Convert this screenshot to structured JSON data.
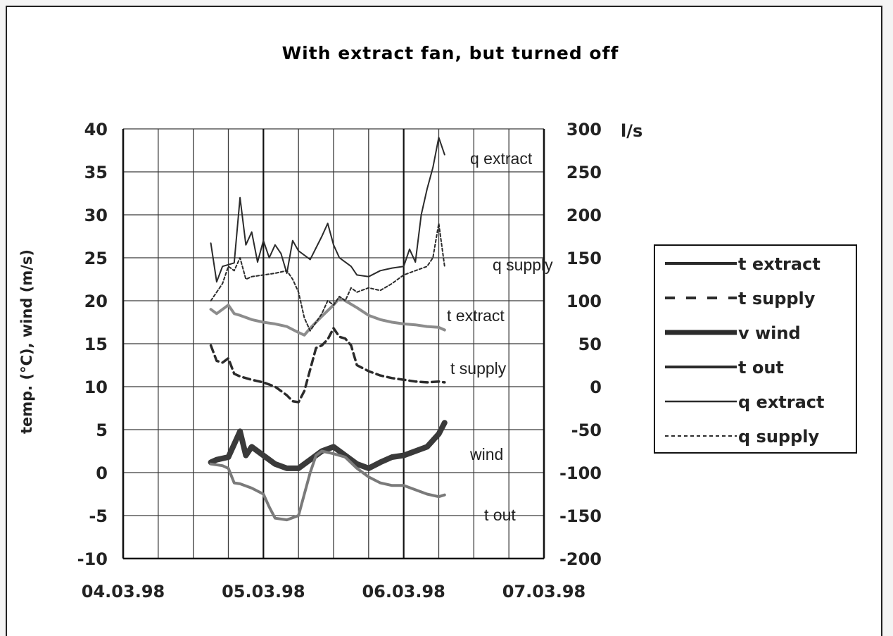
{
  "chart_data": {
    "type": "line",
    "title": "With extract fan, but  turned off",
    "ylabel": "temp. (°C),  wind (m/s)",
    "y2label": "l/s",
    "xlabel": "",
    "x_ticks": [
      "04.03.98",
      "05.03.98",
      "06.03.98",
      "07.03.98"
    ],
    "xlim": [
      "04.03.98 00:00",
      "07.03.98 00:00"
    ],
    "ylim": [
      -10,
      40
    ],
    "y2lim": [
      -200,
      300
    ],
    "y_ticks": [
      "40",
      "35",
      "30",
      "25",
      "20",
      "15",
      "10",
      "5",
      "0",
      "-5",
      "-10"
    ],
    "y2_ticks": [
      "300",
      "250",
      "200",
      "150",
      "100",
      "50",
      "0",
      "-50",
      "-100",
      "-150",
      "-200"
    ],
    "grid": true,
    "legend_position": "right",
    "colors": {
      "dark": "#2b2b2b",
      "gray": "#8c8c8c",
      "medium": "#4a4a4a"
    },
    "legend": [
      "t extract",
      "t supply",
      "v wind",
      "t out",
      "q extract",
      "q supply"
    ],
    "annotations": [
      "q extract",
      "q supply",
      "t extract",
      "t supply",
      "wind",
      "t out"
    ],
    "series": [
      {
        "name": "t extract",
        "axis": "left",
        "color": "#8c8c8c",
        "style": "solid-gray",
        "points": [
          [
            "04.03.98 15:00",
            19.0
          ],
          [
            "04.03.98 16:00",
            18.5
          ],
          [
            "04.03.98 17:00",
            19.0
          ],
          [
            "04.03.98 18:00",
            19.5
          ],
          [
            "04.03.98 19:00",
            18.5
          ],
          [
            "04.03.98 20:00",
            18.3
          ],
          [
            "04.03.98 22:00",
            17.8
          ],
          [
            "05.03.98 00:00",
            17.5
          ],
          [
            "05.03.98 02:00",
            17.3
          ],
          [
            "05.03.98 04:00",
            17.0
          ],
          [
            "05.03.98 06:00",
            16.3
          ],
          [
            "05.03.98 07:00",
            16.0
          ],
          [
            "05.03.98 08:00",
            16.8
          ],
          [
            "05.03.98 10:00",
            18.2
          ],
          [
            "05.03.98 12:00",
            19.5
          ],
          [
            "05.03.98 13:00",
            20.3
          ],
          [
            "05.03.98 14:00",
            20.0
          ],
          [
            "05.03.98 16:00",
            19.2
          ],
          [
            "05.03.98 18:00",
            18.3
          ],
          [
            "05.03.98 20:00",
            17.8
          ],
          [
            "05.03.98 22:00",
            17.5
          ],
          [
            "06.03.98 00:00",
            17.3
          ],
          [
            "06.03.98 02:00",
            17.2
          ],
          [
            "06.03.98 04:00",
            17.0
          ],
          [
            "06.03.98 06:00",
            16.9
          ],
          [
            "06.03.98 07:00",
            16.6
          ]
        ]
      },
      {
        "name": "t supply",
        "axis": "left",
        "color": "#2b2b2b",
        "style": "dashed",
        "points": [
          [
            "04.03.98 15:00",
            14.8
          ],
          [
            "04.03.98 16:00",
            13.0
          ],
          [
            "04.03.98 17:00",
            12.8
          ],
          [
            "04.03.98 18:00",
            13.3
          ],
          [
            "04.03.98 19:00",
            11.5
          ],
          [
            "04.03.98 20:00",
            11.2
          ],
          [
            "04.03.98 22:00",
            10.8
          ],
          [
            "05.03.98 00:00",
            10.5
          ],
          [
            "05.03.98 02:00",
            10.0
          ],
          [
            "05.03.98 04:00",
            9.0
          ],
          [
            "05.03.98 05:00",
            8.3
          ],
          [
            "05.03.98 06:00",
            8.2
          ],
          [
            "05.03.98 07:00",
            9.5
          ],
          [
            "05.03.98 08:00",
            12.0
          ],
          [
            "05.03.98 09:00",
            14.5
          ],
          [
            "05.03.98 10:00",
            14.8
          ],
          [
            "05.03.98 11:00",
            15.5
          ],
          [
            "05.03.98 12:00",
            16.8
          ],
          [
            "05.03.98 13:00",
            15.8
          ],
          [
            "05.03.98 14:00",
            15.6
          ],
          [
            "05.03.98 15:00",
            14.8
          ],
          [
            "05.03.98 16:00",
            12.5
          ],
          [
            "05.03.98 18:00",
            11.8
          ],
          [
            "05.03.98 20:00",
            11.3
          ],
          [
            "05.03.98 22:00",
            11.0
          ],
          [
            "06.03.98 00:00",
            10.8
          ],
          [
            "06.03.98 02:00",
            10.6
          ],
          [
            "06.03.98 04:00",
            10.5
          ],
          [
            "06.03.98 06:00",
            10.6
          ],
          [
            "06.03.98 07:00",
            10.5
          ]
        ]
      },
      {
        "name": "v wind",
        "axis": "left",
        "color": "#3a3a3a",
        "style": "thick",
        "points": [
          [
            "04.03.98 15:00",
            1.2
          ],
          [
            "04.03.98 16:00",
            1.5
          ],
          [
            "04.03.98 18:00",
            1.8
          ],
          [
            "04.03.98 20:00",
            4.8
          ],
          [
            "04.03.98 21:00",
            2.0
          ],
          [
            "04.03.98 22:00",
            3.0
          ],
          [
            "05.03.98 00:00",
            2.0
          ],
          [
            "05.03.98 02:00",
            1.0
          ],
          [
            "05.03.98 04:00",
            0.5
          ],
          [
            "05.03.98 06:00",
            0.5
          ],
          [
            "05.03.98 08:00",
            1.5
          ],
          [
            "05.03.98 10:00",
            2.5
          ],
          [
            "05.03.98 12:00",
            3.0
          ],
          [
            "05.03.98 14:00",
            2.0
          ],
          [
            "05.03.98 16:00",
            1.0
          ],
          [
            "05.03.98 18:00",
            0.5
          ],
          [
            "05.03.98 20:00",
            1.2
          ],
          [
            "05.03.98 22:00",
            1.8
          ],
          [
            "06.03.98 00:00",
            2.0
          ],
          [
            "06.03.98 02:00",
            2.5
          ],
          [
            "06.03.98 04:00",
            3.0
          ],
          [
            "06.03.98 06:00",
            4.5
          ],
          [
            "06.03.98 07:00",
            5.8
          ]
        ]
      },
      {
        "name": "t out",
        "axis": "left",
        "color": "#7a7a7a",
        "style": "solid-medium",
        "points": [
          [
            "04.03.98 15:00",
            1.0
          ],
          [
            "04.03.98 17:00",
            0.8
          ],
          [
            "04.03.98 18:00",
            0.5
          ],
          [
            "04.03.98 19:00",
            -1.2
          ],
          [
            "04.03.98 20:00",
            -1.3
          ],
          [
            "04.03.98 22:00",
            -1.8
          ],
          [
            "05.03.98 00:00",
            -2.5
          ],
          [
            "05.03.98 01:00",
            -4.0
          ],
          [
            "05.03.98 02:00",
            -5.3
          ],
          [
            "05.03.98 04:00",
            -5.5
          ],
          [
            "05.03.98 06:00",
            -5.0
          ],
          [
            "05.03.98 07:00",
            -2.5
          ],
          [
            "05.03.98 08:00",
            0.0
          ],
          [
            "05.03.98 09:00",
            2.0
          ],
          [
            "05.03.98 10:00",
            2.5
          ],
          [
            "05.03.98 12:00",
            2.2
          ],
          [
            "05.03.98 14:00",
            1.8
          ],
          [
            "05.03.98 16:00",
            0.5
          ],
          [
            "05.03.98 18:00",
            -0.5
          ],
          [
            "05.03.98 20:00",
            -1.2
          ],
          [
            "05.03.98 22:00",
            -1.5
          ],
          [
            "06.03.98 00:00",
            -1.5
          ],
          [
            "06.03.98 02:00",
            -2.0
          ],
          [
            "06.03.98 04:00",
            -2.5
          ],
          [
            "06.03.98 06:00",
            -2.8
          ],
          [
            "06.03.98 07:00",
            -2.6
          ]
        ]
      },
      {
        "name": "q extract",
        "axis": "right",
        "color": "#2b2b2b",
        "style": "solid-thin",
        "points": [
          [
            "04.03.98 15:00",
            167
          ],
          [
            "04.03.98 16:00",
            122
          ],
          [
            "04.03.98 17:00",
            140
          ],
          [
            "04.03.98 18:00",
            142
          ],
          [
            "04.03.98 19:00",
            144
          ],
          [
            "04.03.98 20:00",
            220
          ],
          [
            "04.03.98 21:00",
            165
          ],
          [
            "04.03.98 22:00",
            180
          ],
          [
            "04.03.98 23:00",
            145
          ],
          [
            "05.03.98 00:00",
            170
          ],
          [
            "05.03.98 01:00",
            150
          ],
          [
            "05.03.98 02:00",
            165
          ],
          [
            "05.03.98 03:00",
            155
          ],
          [
            "05.03.98 04:00",
            132
          ],
          [
            "05.03.98 05:00",
            170
          ],
          [
            "05.03.98 06:00",
            158
          ],
          [
            "05.03.98 08:00",
            148
          ],
          [
            "05.03.98 10:00",
            175
          ],
          [
            "05.03.98 11:00",
            190
          ],
          [
            "05.03.98 12:00",
            165
          ],
          [
            "05.03.98 13:00",
            150
          ],
          [
            "05.03.98 14:00",
            145
          ],
          [
            "05.03.98 15:00",
            140
          ],
          [
            "05.03.98 16:00",
            130
          ],
          [
            "05.03.98 18:00",
            128
          ],
          [
            "05.03.98 20:00",
            135
          ],
          [
            "05.03.98 22:00",
            138
          ],
          [
            "06.03.98 00:00",
            140
          ],
          [
            "06.03.98 01:00",
            160
          ],
          [
            "06.03.98 02:00",
            145
          ],
          [
            "06.03.98 03:00",
            200
          ],
          [
            "06.03.98 04:00",
            230
          ],
          [
            "06.03.98 05:00",
            255
          ],
          [
            "06.03.98 06:00",
            290
          ],
          [
            "06.03.98 07:00",
            270
          ]
        ]
      },
      {
        "name": "q supply",
        "axis": "right",
        "color": "#2b2b2b",
        "style": "dotted",
        "points": [
          [
            "04.03.98 15:00",
            100
          ],
          [
            "04.03.98 16:00",
            110
          ],
          [
            "04.03.98 17:00",
            120
          ],
          [
            "04.03.98 18:00",
            140
          ],
          [
            "04.03.98 19:00",
            135
          ],
          [
            "04.03.98 20:00",
            150
          ],
          [
            "04.03.98 21:00",
            125
          ],
          [
            "04.03.98 22:00",
            128
          ],
          [
            "05.03.98 00:00",
            130
          ],
          [
            "05.03.98 02:00",
            132
          ],
          [
            "05.03.98 04:00",
            135
          ],
          [
            "05.03.98 05:00",
            125
          ],
          [
            "05.03.98 06:00",
            110
          ],
          [
            "05.03.98 07:00",
            80
          ],
          [
            "05.03.98 08:00",
            65
          ],
          [
            "05.03.98 09:00",
            75
          ],
          [
            "05.03.98 10:00",
            85
          ],
          [
            "05.03.98 11:00",
            100
          ],
          [
            "05.03.98 12:00",
            95
          ],
          [
            "05.03.98 13:00",
            105
          ],
          [
            "05.03.98 14:00",
            100
          ],
          [
            "05.03.98 15:00",
            115
          ],
          [
            "05.03.98 16:00",
            110
          ],
          [
            "05.03.98 18:00",
            115
          ],
          [
            "05.03.98 20:00",
            112
          ],
          [
            "05.03.98 22:00",
            120
          ],
          [
            "06.03.98 00:00",
            130
          ],
          [
            "06.03.98 02:00",
            135
          ],
          [
            "06.03.98 04:00",
            140
          ],
          [
            "06.03.98 05:00",
            150
          ],
          [
            "06.03.98 06:00",
            190
          ],
          [
            "06.03.98 07:00",
            140
          ]
        ]
      }
    ]
  }
}
